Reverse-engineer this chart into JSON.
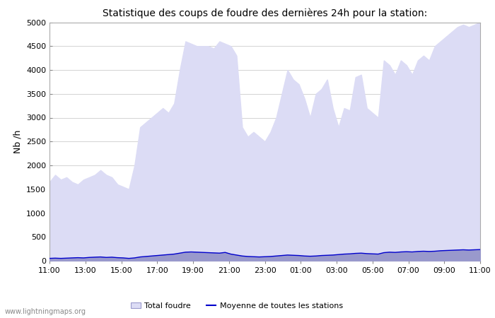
{
  "title": "Statistique des coups de foudre des dernières 24h pour la station:",
  "ylabel": "Nb /h",
  "xlim_labels": [
    "11:00",
    "13:00",
    "15:00",
    "17:00",
    "19:00",
    "21:00",
    "23:00",
    "01:00",
    "03:00",
    "05:00",
    "07:00",
    "09:00",
    "11:00"
  ],
  "ylim": [
    0,
    5000
  ],
  "yticks": [
    0,
    500,
    1000,
    1500,
    2000,
    2500,
    3000,
    3500,
    4000,
    4500,
    5000
  ],
  "fill_color_total": "#dcdcf5",
  "fill_color_detected": "#9999cc",
  "line_color": "#0000cc",
  "background_color": "#ffffff",
  "watermark": "www.lightningmaps.org",
  "legend_total": "Total foudre",
  "legend_moyenne": "Moyenne de toutes les stations",
  "total_foudre": [
    1650,
    1800,
    1700,
    1750,
    1650,
    1600,
    1700,
    1750,
    1800,
    1900,
    1800,
    1750,
    1600,
    1550,
    1500,
    2000,
    2800,
    2900,
    3000,
    3100,
    3200,
    3100,
    3300,
    4000,
    4600,
    4550,
    4500,
    4500,
    4500,
    4450,
    4600,
    4550,
    4500,
    4300,
    2800,
    2600,
    2700,
    2600,
    2500,
    2700,
    3000,
    3500,
    4000,
    3800,
    3700,
    3400,
    3000,
    3500,
    3600,
    3800,
    3200,
    2800,
    3200,
    3150,
    3850,
    3900,
    3200,
    3100,
    3000,
    4200,
    4100,
    3900,
    4200,
    4100,
    3900,
    4200,
    4300,
    4200,
    4500,
    4600,
    4700,
    4800,
    4900,
    4950,
    4900,
    4950,
    5000
  ],
  "moyenne": [
    50,
    55,
    50,
    55,
    60,
    65,
    60,
    70,
    75,
    80,
    70,
    75,
    65,
    60,
    50,
    60,
    80,
    90,
    100,
    110,
    120,
    130,
    140,
    160,
    180,
    185,
    180,
    175,
    170,
    165,
    160,
    175,
    140,
    120,
    100,
    90,
    85,
    80,
    85,
    90,
    100,
    110,
    120,
    115,
    110,
    100,
    95,
    100,
    110,
    115,
    120,
    130,
    140,
    145,
    155,
    160,
    150,
    145,
    140,
    170,
    180,
    175,
    185,
    190,
    185,
    195,
    200,
    195,
    200,
    210,
    215,
    220,
    225,
    230,
    225,
    230,
    235
  ],
  "detected": [
    50,
    55,
    50,
    55,
    60,
    65,
    60,
    70,
    75,
    80,
    70,
    75,
    65,
    60,
    50,
    60,
    80,
    90,
    100,
    110,
    120,
    130,
    140,
    160,
    180,
    185,
    180,
    175,
    170,
    165,
    160,
    175,
    140,
    120,
    100,
    90,
    85,
    80,
    85,
    90,
    100,
    110,
    120,
    115,
    110,
    100,
    95,
    100,
    110,
    115,
    120,
    130,
    140,
    145,
    155,
    160,
    150,
    145,
    140,
    170,
    180,
    175,
    185,
    190,
    185,
    195,
    200,
    195,
    200,
    210,
    215,
    220,
    225,
    230,
    225,
    230,
    235
  ]
}
